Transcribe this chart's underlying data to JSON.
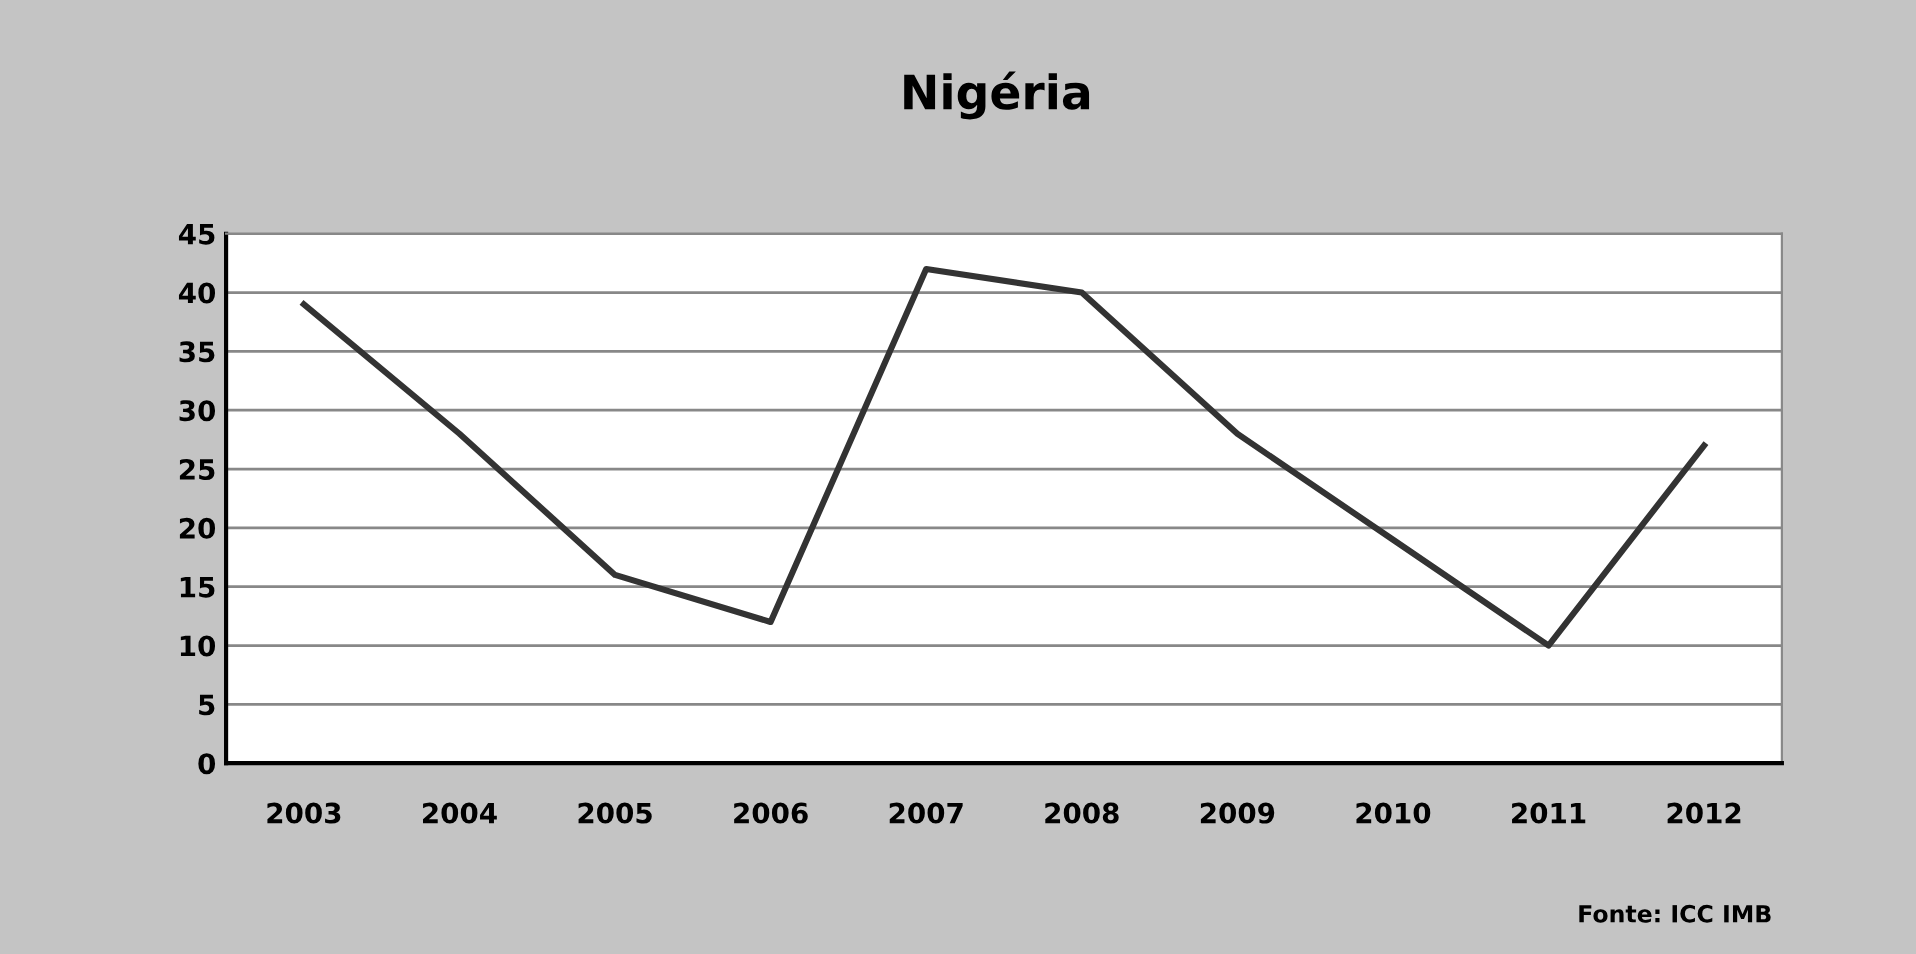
{
  "chart_data": {
    "type": "line",
    "title": "Nigéria",
    "categories": [
      "2003",
      "2004",
      "2005",
      "2006",
      "2007",
      "2008",
      "2009",
      "2010",
      "2011",
      "2012"
    ],
    "series": [
      {
        "color": "#333333",
        "values": [
          39,
          28,
          16,
          12,
          42,
          40,
          28,
          19,
          10,
          27
        ]
      }
    ],
    "ylim": [
      0,
      45
    ],
    "yticks": [
      0,
      5,
      10,
      15,
      20,
      25,
      30,
      35,
      40,
      45
    ],
    "grid": "y",
    "marker": "none",
    "line_style": "solid",
    "annotations": [
      "Fonte: ICC IMB"
    ]
  }
}
